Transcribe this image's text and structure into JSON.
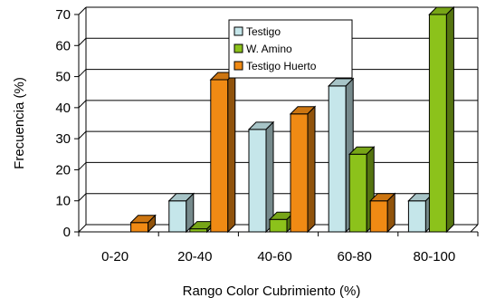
{
  "chart_data": {
    "type": "bar",
    "title": "",
    "xlabel": "Rango Color Cubrimiento (%)",
    "ylabel": "Frecuencia (%)",
    "ylim": [
      0,
      70
    ],
    "yticks": [
      "0",
      "10",
      "20",
      "30",
      "40",
      "50",
      "60",
      "70"
    ],
    "categories": [
      "0-20",
      "20-40",
      "40-60",
      "60-80",
      "80-100"
    ],
    "series": [
      {
        "name": "Testigo",
        "values": [
          0,
          10,
          33,
          47,
          10
        ],
        "color": "#C5E6EA"
      },
      {
        "name": "W. Amino",
        "values": [
          0,
          1,
          4,
          25,
          70
        ],
        "color": "#8CC21B"
      },
      {
        "name": "Testigo Huerto",
        "values": [
          3,
          49,
          38,
          10,
          0
        ],
        "color": "#F08A14"
      }
    ],
    "grid": true,
    "legend": "top-center"
  }
}
